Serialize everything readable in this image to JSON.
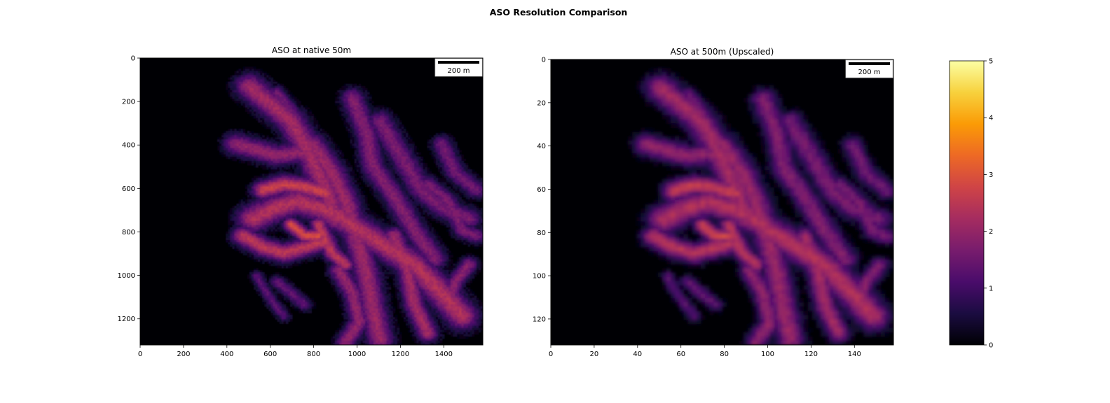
{
  "figure": {
    "suptitle": "ASO Resolution Comparison"
  },
  "chart_data": [
    {
      "type": "heatmap",
      "title": "ASO at native 50m",
      "colormap": "inferno",
      "xlim": [
        0,
        1580
      ],
      "ylim": [
        1320,
        0
      ],
      "xticks": [
        0,
        200,
        400,
        600,
        800,
        1000,
        1200,
        1400
      ],
      "yticks": [
        0,
        200,
        400,
        600,
        800,
        1000,
        1200
      ],
      "scalebar": "200 m",
      "grid": false
    },
    {
      "type": "heatmap",
      "title": "ASO at 500m (Upscaled)",
      "colormap": "inferno",
      "xlim": [
        0,
        158
      ],
      "ylim": [
        132,
        0
      ],
      "xticks": [
        0,
        20,
        40,
        60,
        80,
        100,
        120,
        140
      ],
      "yticks": [
        0,
        20,
        40,
        60,
        80,
        100,
        120
      ],
      "scalebar": "200 m",
      "grid": false
    }
  ],
  "colorbar": {
    "min": 0,
    "max": 5,
    "ticks": [
      0,
      1,
      2,
      3,
      4,
      5
    ],
    "colormap": "inferno",
    "stops": [
      "#000004",
      "#1b0c41",
      "#4a0c6b",
      "#781c6d",
      "#a52c60",
      "#cf4446",
      "#ed6925",
      "#fb9b06",
      "#f7d13d",
      "#fcffa4"
    ]
  }
}
